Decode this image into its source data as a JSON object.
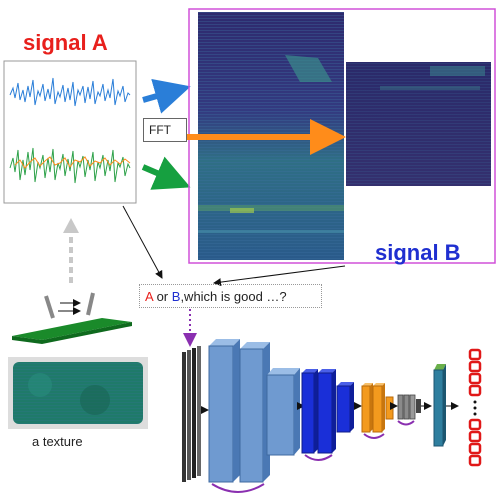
{
  "labels": {
    "signal_a": "signal A",
    "signal_b": "signal B",
    "fft": "FFT",
    "question_a": "A",
    "question_or": " or ",
    "question_b": "B",
    "question_rest": ",which is good …?",
    "texture": "a texture"
  },
  "colors": {
    "signal_a_title": "#e8201c",
    "signal_b_title": "#1f2fd0",
    "trace_blue": "#2a7ed8",
    "trace_green": "#2ea24a",
    "trace_orange": "#ff8c1a",
    "spectrogram_bg": "#3a2a6e",
    "frame_magenta": "#d050d8",
    "block_light": "#6f9ad0",
    "block_dark": "#1a2fd8",
    "block_orange": "#f39a1e",
    "block_gray": "#8a8a8a",
    "output_red": "#e01818",
    "skip_arc": "#8a2fb0",
    "texture_green": "#1f7a6a"
  },
  "icons": [
    "sensor-board-icon",
    "texture-pad-image",
    "output-vector-icon"
  ]
}
